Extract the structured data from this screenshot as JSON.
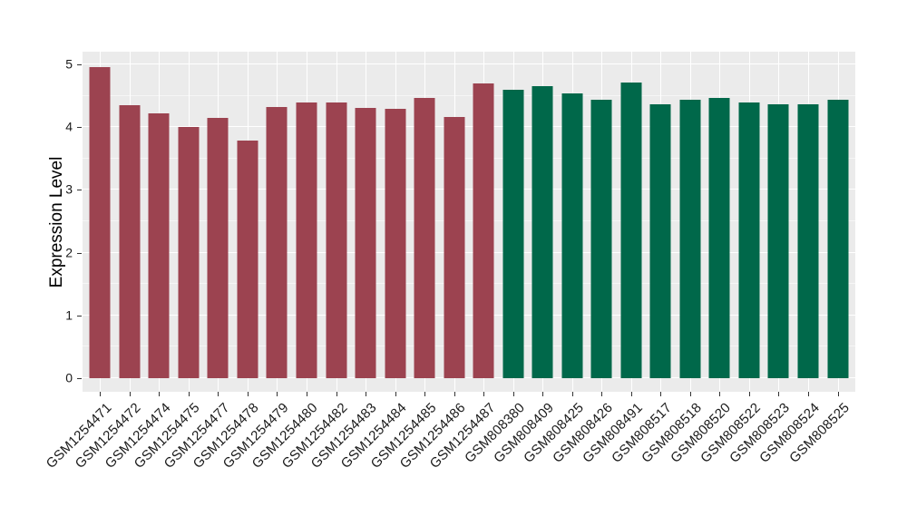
{
  "chart": {
    "panel_background": "#EBEBEB",
    "gridline_color": "#FFFFFF",
    "tick_color": "#333333",
    "text_color": "#1A1A1A"
  },
  "chart_data": {
    "type": "bar",
    "title": "",
    "xlabel": "",
    "ylabel": "Expression Level",
    "ylim": [
      0,
      5.2
    ],
    "yticks": [
      0,
      1,
      2,
      3,
      4,
      5
    ],
    "grid": {
      "horizontal_major": true,
      "horizontal_minor": true,
      "vertical_major": true,
      "legend": "none"
    },
    "categories": [
      "GSM1254471",
      "GSM1254472",
      "GSM1254474",
      "GSM1254475",
      "GSM1254477",
      "GSM1254478",
      "GSM1254479",
      "GSM1254480",
      "GSM1254482",
      "GSM1254483",
      "GSM1254484",
      "GSM1254485",
      "GSM1254486",
      "GSM1254487",
      "GSM808380",
      "GSM808409",
      "GSM808425",
      "GSM808426",
      "GSM808491",
      "GSM808517",
      "GSM808518",
      "GSM808520",
      "GSM808522",
      "GSM808523",
      "GSM808524",
      "GSM808525"
    ],
    "values": [
      4.96,
      4.35,
      4.22,
      4.0,
      4.15,
      3.79,
      4.32,
      4.39,
      4.39,
      4.31,
      4.29,
      4.47,
      4.16,
      4.7,
      4.59,
      4.66,
      4.54,
      4.43,
      4.71,
      4.37,
      4.43,
      4.46,
      4.4,
      4.36,
      4.36,
      4.44
    ],
    "bar_colors": [
      "#9C4350",
      "#9C4350",
      "#9C4350",
      "#9C4350",
      "#9C4350",
      "#9C4350",
      "#9C4350",
      "#9C4350",
      "#9C4350",
      "#9C4350",
      "#9C4350",
      "#9C4350",
      "#9C4350",
      "#9C4350",
      "#00684A",
      "#00684A",
      "#00684A",
      "#00684A",
      "#00684A",
      "#00684A",
      "#00684A",
      "#00684A",
      "#00684A",
      "#00684A",
      "#00684A",
      "#00684A"
    ]
  }
}
